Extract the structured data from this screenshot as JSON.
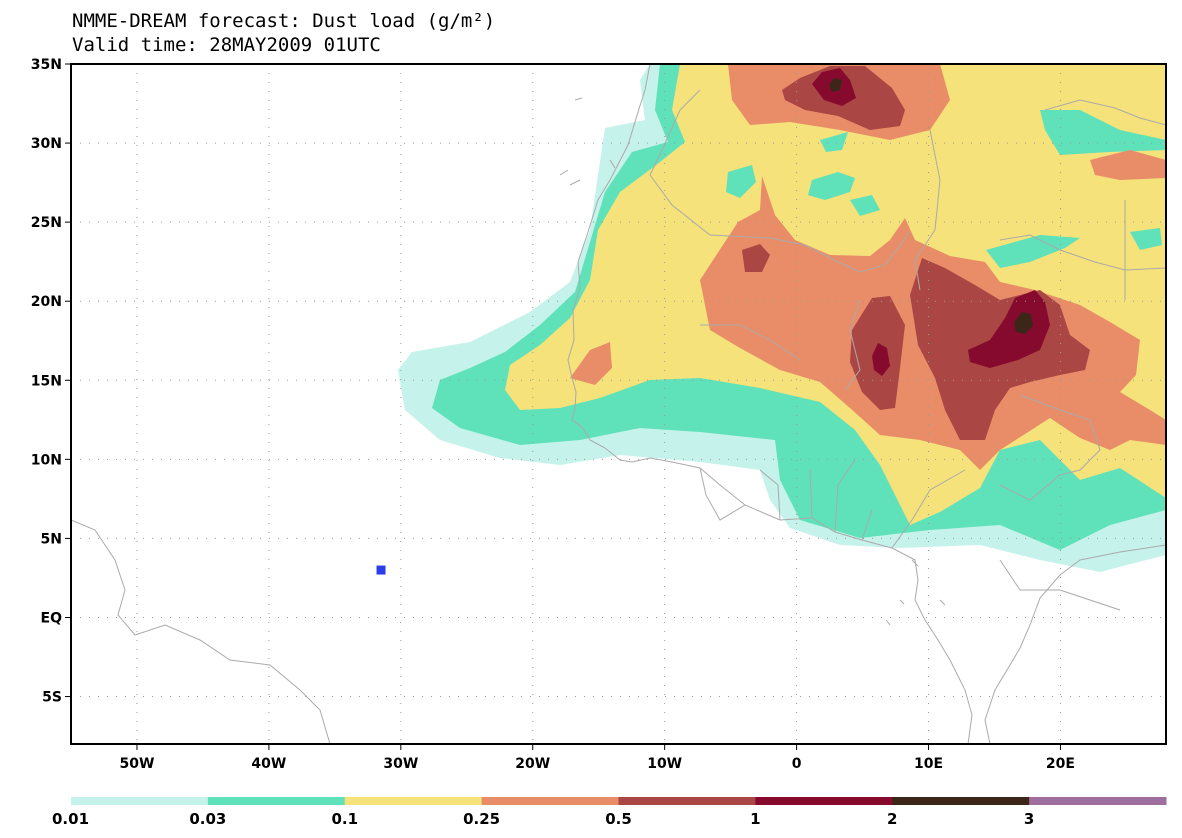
{
  "title": {
    "line1": "NMME-DREAM forecast: Dust load (g/m²)",
    "line2": "Valid time: 28MAY2009 01UTC"
  },
  "map": {
    "lon_range": [
      -55,
      28
    ],
    "lat_range": [
      -8,
      35
    ],
    "x_ticks": [
      {
        "lon": -50,
        "label": "50W"
      },
      {
        "lon": -40,
        "label": "40W"
      },
      {
        "lon": -30,
        "label": "30W"
      },
      {
        "lon": -20,
        "label": "20W"
      },
      {
        "lon": -10,
        "label": "10W"
      },
      {
        "lon": 0,
        "label": "0"
      },
      {
        "lon": 10,
        "label": "10E"
      },
      {
        "lon": 20,
        "label": "20E"
      }
    ],
    "y_ticks": [
      {
        "lat": 35,
        "label": "35N"
      },
      {
        "lat": 30,
        "label": "30N"
      },
      {
        "lat": 25,
        "label": "25N"
      },
      {
        "lat": 20,
        "label": "20N"
      },
      {
        "lat": 15,
        "label": "15N"
      },
      {
        "lat": 10,
        "label": "10N"
      },
      {
        "lat": 5,
        "label": "5N"
      },
      {
        "lat": 0,
        "label": "EQ"
      },
      {
        "lat": -5,
        "label": "5S"
      }
    ],
    "grid": "dotted",
    "marker": {
      "lon": -31.5,
      "lat": 3,
      "color": "#2c3ee8"
    }
  },
  "colorbar": {
    "labels": [
      "0.01",
      "0.03",
      "0.1",
      "0.25",
      "0.5",
      "1",
      "2",
      "3"
    ],
    "colors": [
      "#c5f2ea",
      "#5fe1b9",
      "#f5e27a",
      "#e88d68",
      "#aa4643",
      "#860a2d",
      "#3c2617",
      "#9d6e9e"
    ]
  }
}
